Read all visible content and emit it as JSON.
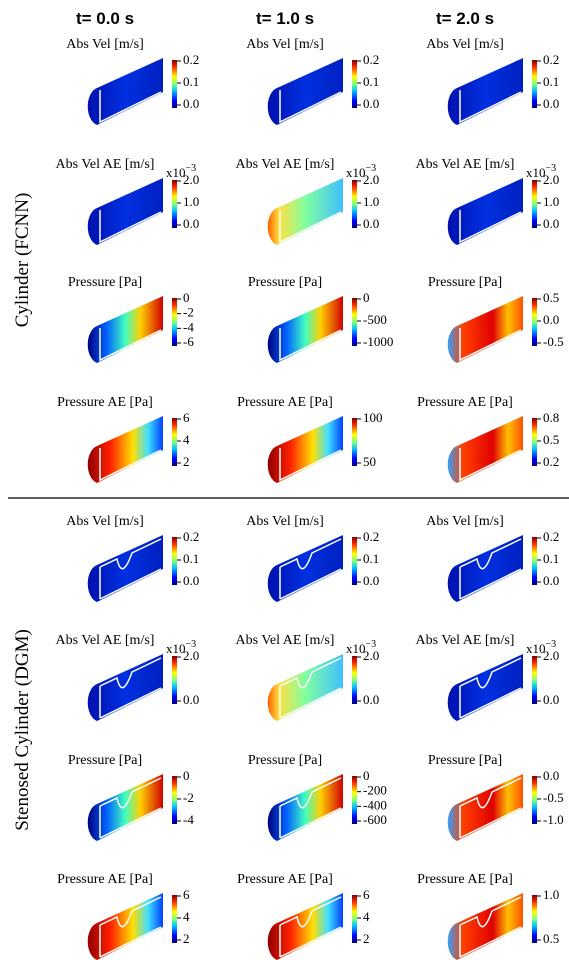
{
  "columns": [
    "t= 0.0 s",
    "t= 1.0 s",
    "t= 2.0 s"
  ],
  "groups": [
    {
      "label": "Cylinder (FCNN)",
      "rows": [
        {
          "panels": [
            {
              "title": "Abs Vel [m/s]",
              "ticks": [
                "0.2",
                "0.1",
                "0.0"
              ]
            },
            {
              "title": "Abs Vel [m/s]",
              "ticks": [
                "0.2",
                "0.1",
                "0.0"
              ]
            },
            {
              "title": "Abs Vel [m/s]",
              "ticks": [
                "0.2",
                "0.1",
                "0.0"
              ]
            }
          ]
        },
        {
          "panels": [
            {
              "title": "Abs Vel AE [m/s]",
              "exponent": {
                "base": "x10",
                "power": "−3"
              },
              "ticks": [
                "2.0",
                "1.0",
                "0.0"
              ]
            },
            {
              "title": "Abs Vel AE [m/s]",
              "exponent": {
                "base": "x10",
                "power": "−3"
              },
              "ticks": [
                "2.0",
                "1.0",
                "0.0"
              ]
            },
            {
              "title": "Abs Vel AE [m/s]",
              "exponent": {
                "base": "x10",
                "power": "−3"
              },
              "ticks": [
                "2.0",
                "1.0",
                "0.0"
              ]
            }
          ]
        },
        {
          "panels": [
            {
              "title": "Pressure [Pa]",
              "ticks": [
                "0",
                "-2",
                "-4",
                "-6"
              ]
            },
            {
              "title": "Pressure [Pa]",
              "ticks": [
                "0",
                "-500",
                "-1000"
              ]
            },
            {
              "title": "Pressure [Pa]",
              "ticks": [
                "0.5",
                "0.0",
                "-0.5"
              ]
            }
          ]
        },
        {
          "panels": [
            {
              "title": "Pressure AE [Pa]",
              "ticks": [
                "6",
                "4",
                "2"
              ]
            },
            {
              "title": "Pressure AE [Pa]",
              "ticks": [
                "100",
                "50"
              ]
            },
            {
              "title": "Pressure AE [Pa]",
              "ticks": [
                "0.8",
                "0.5",
                "0.2"
              ]
            }
          ]
        }
      ]
    },
    {
      "label": "Stenosed Cylinder (DGM)",
      "rows": [
        {
          "panels": [
            {
              "title": "Abs Vel [m/s]",
              "ticks": [
                "0.2",
                "0.1",
                "0.0"
              ]
            },
            {
              "title": "Abs Vel [m/s]",
              "ticks": [
                "0.2",
                "0.1",
                "0.0"
              ]
            },
            {
              "title": "Abs Vel [m/s]",
              "ticks": [
                "0.2",
                "0.1",
                "0.0"
              ]
            }
          ]
        },
        {
          "panels": [
            {
              "title": "Abs Vel AE [m/s]",
              "exponent": {
                "base": "x10",
                "power": "−3"
              },
              "ticks": [
                "2.0",
                "0.0"
              ]
            },
            {
              "title": "Abs Vel AE [m/s]",
              "exponent": {
                "base": "x10",
                "power": "−3"
              },
              "ticks": [
                "2.0",
                "0.0"
              ]
            },
            {
              "title": "Abs Vel AE [m/s]",
              "exponent": {
                "base": "x10",
                "power": "−3"
              },
              "ticks": [
                "2.0",
                "0.0"
              ]
            }
          ]
        },
        {
          "panels": [
            {
              "title": "Pressure [Pa]",
              "ticks": [
                "0",
                "-2",
                "-4"
              ]
            },
            {
              "title": "Pressure [Pa]",
              "ticks": [
                "0",
                "-200",
                "-400",
                "-600"
              ]
            },
            {
              "title": "Pressure [Pa]",
              "ticks": [
                "0.0",
                "-0.5",
                "-1.0"
              ]
            }
          ]
        },
        {
          "panels": [
            {
              "title": "Pressure AE [Pa]",
              "ticks": [
                "6",
                "4",
                "2"
              ]
            },
            {
              "title": "Pressure AE [Pa]",
              "ticks": [
                "6",
                "4",
                "2"
              ]
            },
            {
              "title": "Pressure AE [Pa]",
              "ticks": [
                "1.0",
                "0.5"
              ]
            }
          ]
        }
      ]
    }
  ]
}
